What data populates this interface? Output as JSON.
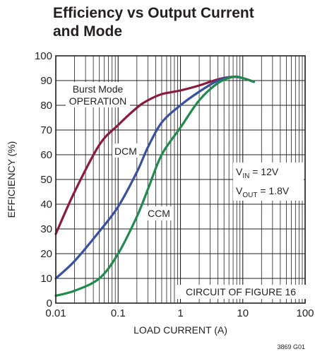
{
  "chart_data": {
    "type": "line",
    "title_lines": [
      "Efficiency vs Output Current",
      "and Mode"
    ],
    "xlabel": "LOAD CURRENT (A)",
    "ylabel": "EFFICIENCY (%)",
    "x_scale": "log",
    "xlim": [
      0.01,
      100
    ],
    "ylim": [
      0,
      100
    ],
    "x_ticks": [
      0.01,
      0.1,
      1,
      10,
      100
    ],
    "x_tick_labels": [
      "0.01",
      "0.1",
      "1",
      "10",
      "100"
    ],
    "y_ticks": [
      0,
      10,
      20,
      30,
      40,
      50,
      60,
      70,
      80,
      90,
      100
    ],
    "y_tick_labels": [
      "0",
      "10",
      "20",
      "30",
      "40",
      "50",
      "60",
      "70",
      "80",
      "90",
      "100"
    ],
    "grid": true,
    "series": [
      {
        "name": "Burst Mode OPERATION",
        "color": "#8b1a3c",
        "points": [
          [
            0.01,
            28
          ],
          [
            0.02,
            45
          ],
          [
            0.05,
            64
          ],
          [
            0.1,
            72
          ],
          [
            0.2,
            79
          ],
          [
            0.3,
            82
          ],
          [
            0.5,
            84.5
          ],
          [
            1,
            86
          ],
          [
            2,
            88
          ],
          [
            4,
            90.5
          ],
          [
            7,
            91.5
          ],
          [
            10,
            91
          ],
          [
            15,
            89.5
          ]
        ]
      },
      {
        "name": "DCM",
        "color": "#3a4fa2",
        "points": [
          [
            0.01,
            10
          ],
          [
            0.02,
            17
          ],
          [
            0.05,
            29
          ],
          [
            0.1,
            39
          ],
          [
            0.2,
            53
          ],
          [
            0.3,
            63
          ],
          [
            0.5,
            73
          ],
          [
            1,
            80
          ],
          [
            2,
            85.5
          ],
          [
            4,
            90
          ],
          [
            7,
            91.5
          ],
          [
            10,
            91
          ],
          [
            15,
            89.5
          ]
        ]
      },
      {
        "name": "CCM",
        "color": "#1e8a4c",
        "points": [
          [
            0.01,
            3
          ],
          [
            0.02,
            5
          ],
          [
            0.05,
            10
          ],
          [
            0.1,
            20
          ],
          [
            0.2,
            35
          ],
          [
            0.3,
            46
          ],
          [
            0.5,
            60
          ],
          [
            1,
            71
          ],
          [
            2,
            82
          ],
          [
            4,
            89
          ],
          [
            7,
            91.5
          ],
          [
            10,
            91
          ],
          [
            15,
            89.5
          ]
        ]
      }
    ],
    "annotations": {
      "burst_line1": "Burst Mode",
      "burst_line2": "OPERATION",
      "dcm": "DCM",
      "ccm": "CCM",
      "vin_main": "V",
      "vin_sub": "IN",
      "vin_value": " = 12V",
      "vout_main": "V",
      "vout_sub": "OUT",
      "vout_value": " = 1.8V",
      "circuit": "CIRCUIT OF FIGURE 16"
    },
    "figure_id": "3869 G01"
  }
}
